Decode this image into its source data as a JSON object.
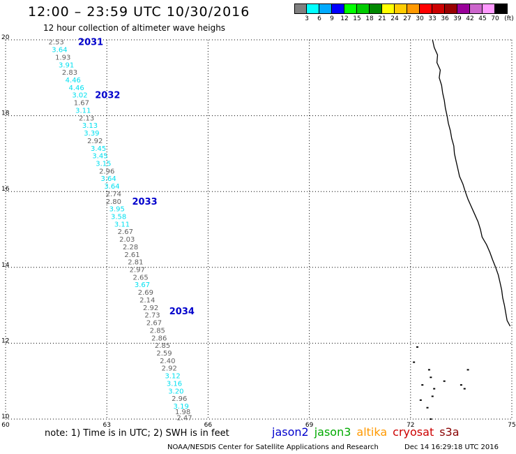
{
  "header": {
    "title": "12:00 – 23:59 UTC 10/30/2016",
    "subtitle": "12 hour collection of altimeter wave heighs"
  },
  "legend": {
    "unit": "(ft)",
    "swatches": [
      {
        "color": "#808080",
        "label": "3"
      },
      {
        "color": "#00ffff",
        "label": "6"
      },
      {
        "color": "#00aaff",
        "label": "9"
      },
      {
        "color": "#0000ff",
        "label": "12"
      },
      {
        "color": "#00ff00",
        "label": "15"
      },
      {
        "color": "#00cc00",
        "label": "18"
      },
      {
        "color": "#008800",
        "label": "21"
      },
      {
        "color": "#ffff00",
        "label": "24"
      },
      {
        "color": "#ffcc00",
        "label": "27"
      },
      {
        "color": "#ff9900",
        "label": "30"
      },
      {
        "color": "#ff0000",
        "label": "33"
      },
      {
        "color": "#cc0000",
        "label": "36"
      },
      {
        "color": "#990000",
        "label": "39"
      },
      {
        "color": "#990099",
        "label": "42"
      },
      {
        "color": "#cc66cc",
        "label": "45"
      },
      {
        "color": "#ff99ff",
        "label": "70"
      },
      {
        "color": "#000000",
        "label": ""
      }
    ]
  },
  "map": {
    "lon_min": 60,
    "lon_max": 75,
    "lat_min": 10,
    "lat_max": 20,
    "lon_ticks": [
      "60",
      "63",
      "66",
      "69",
      "72",
      "75"
    ],
    "lat_ticks": [
      "20",
      "18",
      "16",
      "14",
      "12",
      "10"
    ],
    "gray_color": "#606060",
    "cyan_color": "#00e0f0",
    "pass_color": "#0000cc",
    "observations": [
      {
        "lat": 19.95,
        "lon": 61.5,
        "value": "2.53",
        "cat": "gray"
      },
      {
        "lat": 19.75,
        "lon": 61.6,
        "value": "3.64",
        "cat": "cyan"
      },
      {
        "lat": 19.55,
        "lon": 61.7,
        "value": "1.93",
        "cat": "gray"
      },
      {
        "lat": 19.35,
        "lon": 61.8,
        "value": "3.91",
        "cat": "cyan"
      },
      {
        "lat": 19.15,
        "lon": 61.9,
        "value": "2.83",
        "cat": "gray"
      },
      {
        "lat": 18.95,
        "lon": 62.0,
        "value": "4.46",
        "cat": "cyan"
      },
      {
        "lat": 18.75,
        "lon": 62.1,
        "value": "4.46",
        "cat": "cyan"
      },
      {
        "lat": 18.55,
        "lon": 62.2,
        "value": "3.02",
        "cat": "cyan"
      },
      {
        "lat": 18.35,
        "lon": 62.25,
        "value": "1.67",
        "cat": "gray"
      },
      {
        "lat": 18.15,
        "lon": 62.3,
        "value": "3.11",
        "cat": "cyan"
      },
      {
        "lat": 17.95,
        "lon": 62.4,
        "value": "2.13",
        "cat": "gray"
      },
      {
        "lat": 17.75,
        "lon": 62.5,
        "value": "3.13",
        "cat": "cyan"
      },
      {
        "lat": 17.55,
        "lon": 62.55,
        "value": "3.39",
        "cat": "cyan"
      },
      {
        "lat": 17.35,
        "lon": 62.65,
        "value": "2.92",
        "cat": "gray"
      },
      {
        "lat": 17.15,
        "lon": 62.75,
        "value": "3.45",
        "cat": "cyan"
      },
      {
        "lat": 16.95,
        "lon": 62.8,
        "value": "3.45",
        "cat": "cyan"
      },
      {
        "lat": 16.75,
        "lon": 62.9,
        "value": "3.15",
        "cat": "cyan"
      },
      {
        "lat": 16.55,
        "lon": 63.0,
        "value": "2.96",
        "cat": "gray"
      },
      {
        "lat": 16.35,
        "lon": 63.05,
        "value": "3.64",
        "cat": "cyan"
      },
      {
        "lat": 16.15,
        "lon": 63.15,
        "value": "3.64",
        "cat": "cyan"
      },
      {
        "lat": 15.95,
        "lon": 63.2,
        "value": "2.74",
        "cat": "gray"
      },
      {
        "lat": 15.75,
        "lon": 63.2,
        "value": "2.80",
        "cat": "gray"
      },
      {
        "lat": 15.55,
        "lon": 63.3,
        "value": "3.95",
        "cat": "cyan"
      },
      {
        "lat": 15.35,
        "lon": 63.35,
        "value": "3.58",
        "cat": "cyan"
      },
      {
        "lat": 15.15,
        "lon": 63.45,
        "value": "3.11",
        "cat": "cyan"
      },
      {
        "lat": 14.95,
        "lon": 63.55,
        "value": "2.67",
        "cat": "gray"
      },
      {
        "lat": 14.75,
        "lon": 63.6,
        "value": "2.03",
        "cat": "gray"
      },
      {
        "lat": 14.55,
        "lon": 63.7,
        "value": "2.28",
        "cat": "gray"
      },
      {
        "lat": 14.35,
        "lon": 63.75,
        "value": "2.61",
        "cat": "gray"
      },
      {
        "lat": 14.15,
        "lon": 63.85,
        "value": "2.81",
        "cat": "gray"
      },
      {
        "lat": 13.95,
        "lon": 63.9,
        "value": "2.97",
        "cat": "gray"
      },
      {
        "lat": 13.75,
        "lon": 64.0,
        "value": "2.65",
        "cat": "gray"
      },
      {
        "lat": 13.55,
        "lon": 64.05,
        "value": "3.67",
        "cat": "cyan"
      },
      {
        "lat": 13.35,
        "lon": 64.15,
        "value": "2.69",
        "cat": "gray"
      },
      {
        "lat": 13.15,
        "lon": 64.2,
        "value": "2.14",
        "cat": "gray"
      },
      {
        "lat": 12.95,
        "lon": 64.3,
        "value": "2.92",
        "cat": "gray"
      },
      {
        "lat": 12.75,
        "lon": 64.35,
        "value": "2.73",
        "cat": "gray"
      },
      {
        "lat": 12.55,
        "lon": 64.4,
        "value": "2.67",
        "cat": "gray"
      },
      {
        "lat": 12.35,
        "lon": 64.5,
        "value": "2.85",
        "cat": "gray"
      },
      {
        "lat": 12.15,
        "lon": 64.55,
        "value": "2.86",
        "cat": "gray"
      },
      {
        "lat": 11.95,
        "lon": 64.65,
        "value": "2.85",
        "cat": "gray"
      },
      {
        "lat": 11.75,
        "lon": 64.7,
        "value": "2.59",
        "cat": "gray"
      },
      {
        "lat": 11.55,
        "lon": 64.8,
        "value": "2.40",
        "cat": "gray"
      },
      {
        "lat": 11.35,
        "lon": 64.85,
        "value": "2.92",
        "cat": "gray"
      },
      {
        "lat": 11.15,
        "lon": 64.95,
        "value": "3.12",
        "cat": "cyan"
      },
      {
        "lat": 10.95,
        "lon": 65.0,
        "value": "3.16",
        "cat": "cyan"
      },
      {
        "lat": 10.75,
        "lon": 65.05,
        "value": "3.20",
        "cat": "cyan"
      },
      {
        "lat": 10.55,
        "lon": 65.15,
        "value": "2.96",
        "cat": "gray"
      },
      {
        "lat": 10.35,
        "lon": 65.2,
        "value": "3.19",
        "cat": "cyan"
      },
      {
        "lat": 10.2,
        "lon": 65.25,
        "value": "1.98",
        "cat": "gray"
      },
      {
        "lat": 10.05,
        "lon": 65.3,
        "value": "2.47",
        "cat": "gray"
      }
    ],
    "passes": [
      {
        "lat": 19.95,
        "lon": 62.15,
        "label": "2031"
      },
      {
        "lat": 18.55,
        "lon": 62.65,
        "label": "2032"
      },
      {
        "lat": 15.75,
        "lon": 63.75,
        "label": "2033"
      },
      {
        "lat": 12.85,
        "lon": 64.85,
        "label": "2034"
      }
    ],
    "coastline": [
      [
        20.0,
        72.65
      ],
      [
        19.8,
        72.7
      ],
      [
        19.6,
        72.8
      ],
      [
        19.4,
        72.78
      ],
      [
        19.2,
        72.88
      ],
      [
        19.0,
        72.85
      ],
      [
        18.8,
        72.92
      ],
      [
        18.6,
        72.95
      ],
      [
        18.4,
        73.0
      ],
      [
        18.2,
        73.03
      ],
      [
        18.0,
        73.08
      ],
      [
        17.8,
        73.12
      ],
      [
        17.6,
        73.18
      ],
      [
        17.4,
        73.22
      ],
      [
        17.2,
        73.28
      ],
      [
        17.0,
        73.3
      ],
      [
        16.8,
        73.35
      ],
      [
        16.6,
        73.4
      ],
      [
        16.4,
        73.45
      ],
      [
        16.2,
        73.55
      ],
      [
        16.0,
        73.62
      ],
      [
        15.8,
        73.7
      ],
      [
        15.6,
        73.8
      ],
      [
        15.4,
        73.9
      ],
      [
        15.2,
        74.0
      ],
      [
        15.0,
        74.07
      ],
      [
        14.8,
        74.12
      ],
      [
        14.6,
        74.25
      ],
      [
        14.4,
        74.35
      ],
      [
        14.2,
        74.43
      ],
      [
        14.0,
        74.52
      ],
      [
        13.8,
        74.6
      ],
      [
        13.6,
        74.65
      ],
      [
        13.4,
        74.7
      ],
      [
        13.2,
        74.73
      ],
      [
        13.0,
        74.78
      ],
      [
        12.8,
        74.82
      ],
      [
        12.6,
        74.86
      ],
      [
        12.45,
        74.95
      ]
    ],
    "islands": [
      [
        11.9,
        72.2
      ],
      [
        11.5,
        72.1
      ],
      [
        11.3,
        72.55
      ],
      [
        11.1,
        72.6
      ],
      [
        10.9,
        72.35
      ],
      [
        10.8,
        72.7
      ],
      [
        10.6,
        72.65
      ],
      [
        10.5,
        72.3
      ],
      [
        10.3,
        72.5
      ],
      [
        10.0,
        72.6
      ],
      [
        11.0,
        73.0
      ],
      [
        10.8,
        73.6
      ],
      [
        11.3,
        73.7
      ],
      [
        10.9,
        73.5
      ]
    ]
  },
  "footer": {
    "note": "note: 1) Time is in UTC; 2) SWH is in feet",
    "satellites": [
      {
        "name": "jason2",
        "color": "#0000cc"
      },
      {
        "name": "jason3",
        "color": "#00aa00"
      },
      {
        "name": "altika",
        "color": "#ff9900"
      },
      {
        "name": "cryosat",
        "color": "#cc0000"
      },
      {
        "name": "s3a",
        "color": "#880000"
      }
    ],
    "credit": "NOAA/NESDIS Center for Satellite Applications and Research",
    "timestamp": "Dec 14 16:29:18 UTC 2016"
  }
}
